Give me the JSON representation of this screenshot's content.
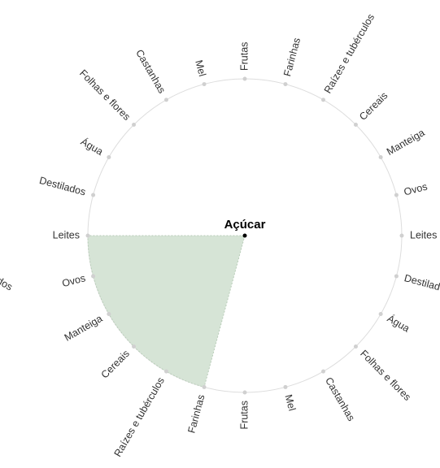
{
  "center_label": "Açúcar",
  "labels": [
    "Frutas",
    "Farinhas",
    "Raízes e tubérculos",
    "Cereais",
    "Manteiga",
    "Ovos",
    "Leites",
    "Destilados",
    "Água",
    "Folhas e flores",
    "Castanhas",
    "Mel",
    "Frutas",
    "Farinhas",
    "Raízes e tubérculos",
    "Cereais",
    "Manteiga",
    "Ovos",
    "Leites",
    "Destilados",
    "Água",
    "Folhas e flores",
    "Castanhas",
    "Mel"
  ],
  "highlight": {
    "from": 13,
    "to": 18
  },
  "neighbor_label": "Destilados"
}
